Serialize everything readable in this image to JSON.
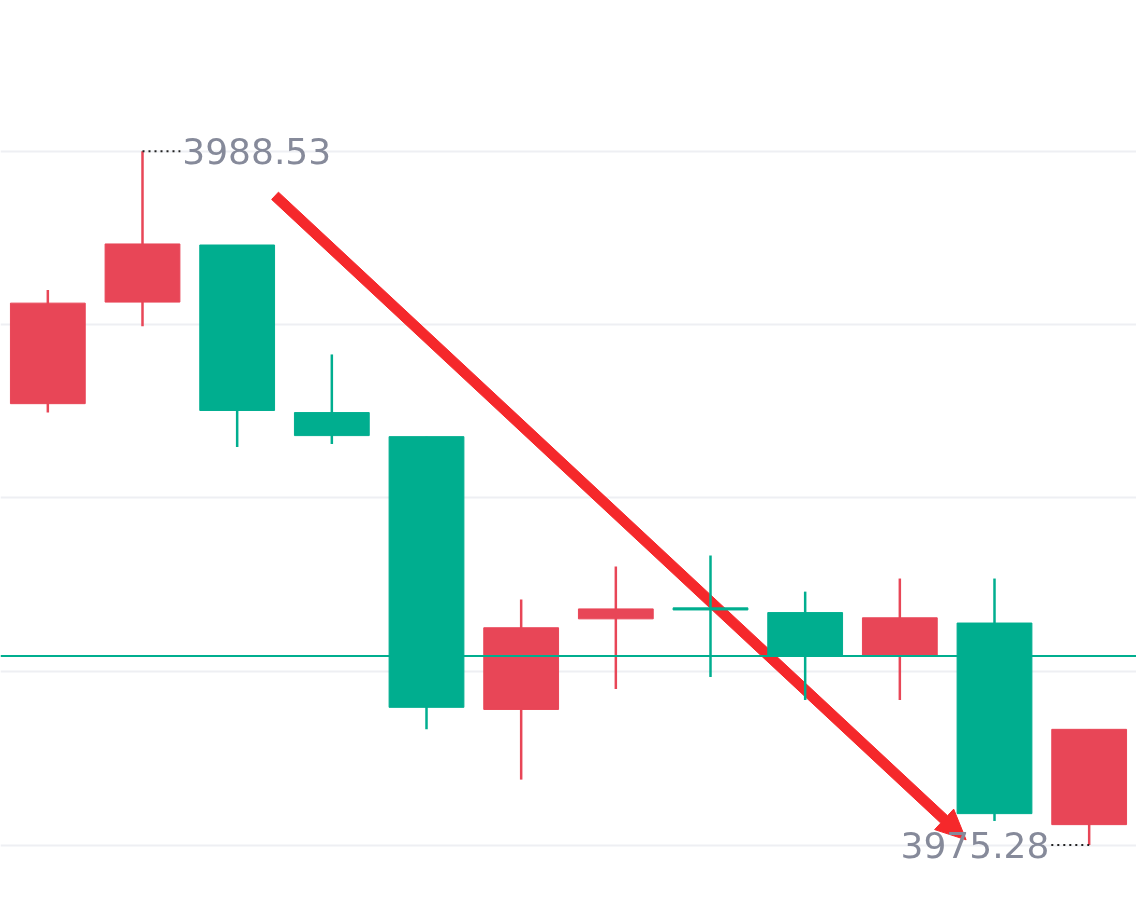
{
  "chart_data": {
    "type": "candlestick",
    "categories": [
      null,
      null,
      null,
      null,
      null,
      null,
      null,
      null,
      null,
      null,
      null,
      null
    ],
    "ohlc": [
      [
        3983.71,
        3985.88,
        3983.54,
        3985.63
      ],
      [
        3985.65,
        3988.53,
        3985.19,
        3986.76
      ],
      [
        3986.74,
        3986.74,
        3982.88,
        3983.58
      ],
      [
        3983.54,
        3984.65,
        3982.94,
        3983.1
      ],
      [
        3983.08,
        3983.08,
        3977.49,
        3977.91
      ],
      [
        3977.87,
        3979.97,
        3976.53,
        3979.43
      ],
      [
        3979.6,
        3980.6,
        3978.26,
        3979.79
      ],
      [
        3979.81,
        3980.81,
        3978.49,
        3979.77
      ],
      [
        3979.72,
        3980.12,
        3978.05,
        3978.91
      ],
      [
        3978.91,
        3980.37,
        3978.05,
        3979.62
      ],
      [
        3979.52,
        3980.37,
        3975.74,
        3975.88
      ],
      [
        3975.67,
        3977.49,
        3975.28,
        3977.49
      ]
    ],
    "colors": [
      "#e84657",
      "#e84657",
      "#00ae8f",
      "#00ae8f",
      "#00ae8f",
      "#e84657",
      "#e84657",
      "#00ae8f",
      "#00ae8f",
      "#e84657",
      "#00ae8f",
      "#e84657"
    ],
    "ylim": [
      3974.24,
      3991.41
    ],
    "yticks": [
      {
        "value": 3975.28,
        "label": null
      },
      {
        "value": 3978.59,
        "label": null
      },
      {
        "value": 3981.91,
        "label": null
      },
      {
        "value": 3985.22,
        "label": null
      },
      {
        "value": 3988.53,
        "label": null
      }
    ],
    "tick_labels": false,
    "grid": "y",
    "ref_lines": [
      {
        "axis": "y",
        "value": 3978.89,
        "color": "#00ae8f"
      }
    ],
    "annotations": [
      "3988.53",
      "3975.28"
    ]
  }
}
